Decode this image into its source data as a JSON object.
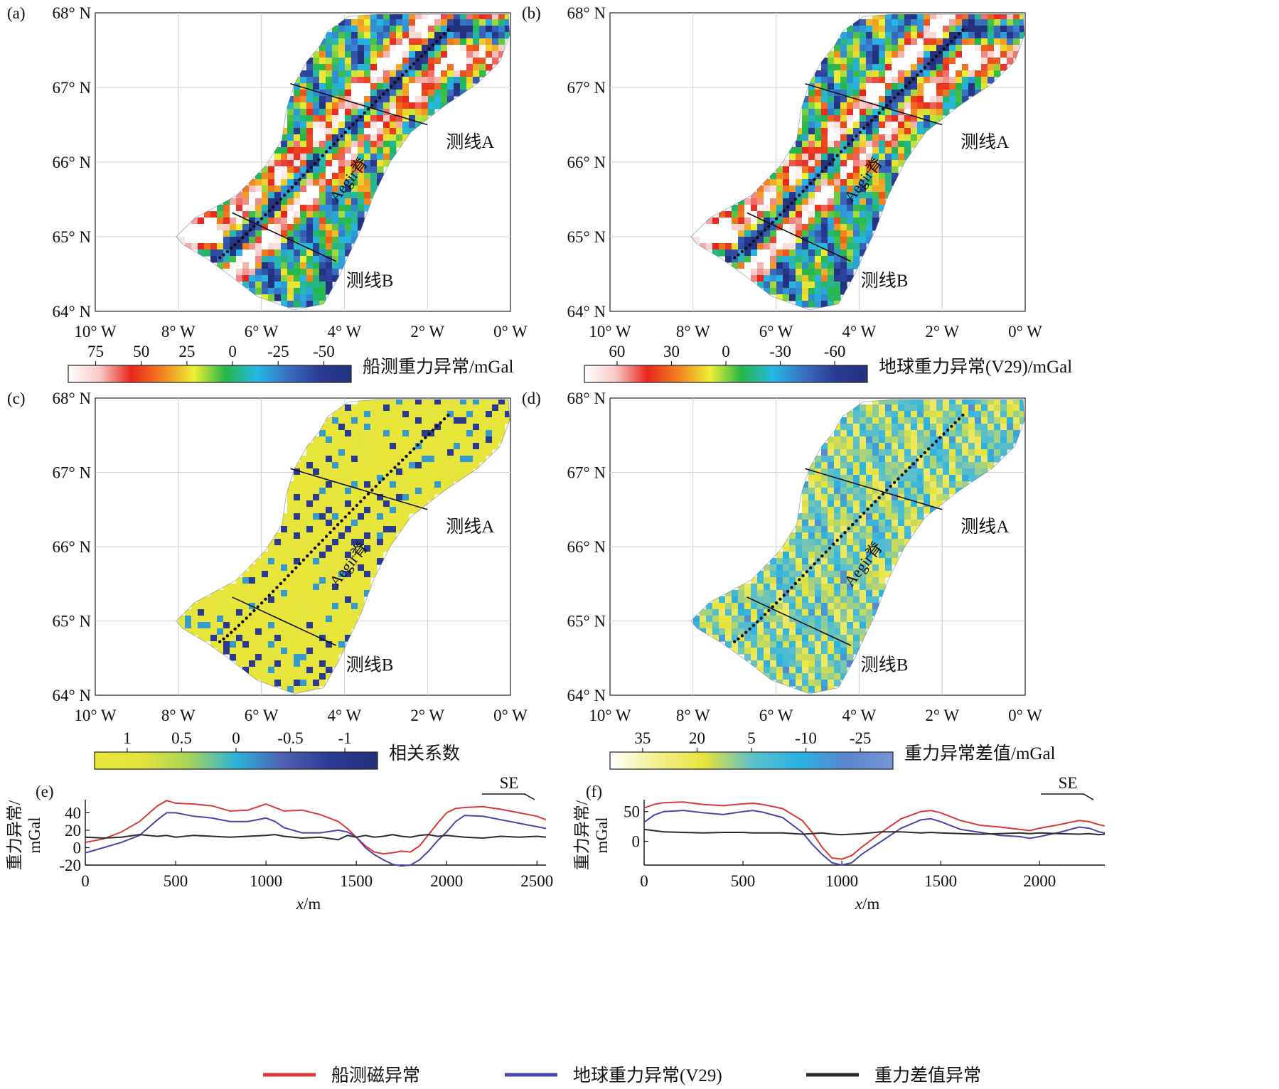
{
  "panels": [
    {
      "tag": "(a)",
      "colorbar_title": "船测重力异常/mGal",
      "ticks": [
        "75",
        "50",
        "25",
        "0",
        "-25",
        "-50"
      ],
      "stops": [
        "#ffffff",
        "#f7c9c6",
        "#e8241c",
        "#f2831f",
        "#eef034",
        "#25b649",
        "#27b7e6",
        "#3a6ec0",
        "#2a3a93",
        "#23317f"
      ],
      "field": "ship"
    },
    {
      "tag": "(b)",
      "colorbar_title": "地球重力异常(V29)/mGal",
      "ticks": [
        "60",
        "30",
        "0",
        "-30",
        "-60"
      ],
      "stops": [
        "#ffffff",
        "#f7c9c6",
        "#e8241c",
        "#f2831f",
        "#eef034",
        "#25b649",
        "#27b7e6",
        "#3a6ec0",
        "#2a3a93",
        "#23317f"
      ],
      "field": "v29"
    },
    {
      "tag": "(c)",
      "colorbar_title": "相关系数",
      "ticks": [
        "1",
        "0.5",
        "0",
        "-0.5",
        "-1"
      ],
      "stops": [
        "#e9e63a",
        "#e3e43d",
        "#a8d35a",
        "#2bb3d9",
        "#4f5fb2",
        "#2b3b94",
        "#242f7a"
      ],
      "field": "corr"
    },
    {
      "tag": "(d)",
      "colorbar_title": "重力异常差值/mGal",
      "ticks": [
        "35",
        "20",
        "5",
        "-10",
        "-25"
      ],
      "stops": [
        "#ffffff",
        "#f1ef8e",
        "#e8e33a",
        "#5fc0c9",
        "#29b3e2",
        "#5a86cf",
        "#7796d6"
      ],
      "field": "diff"
    }
  ],
  "map_common": {
    "lat_labels": [
      "68° N",
      "67° N",
      "66° N",
      "65° N",
      "64° N"
    ],
    "lon_labels": [
      "10° W",
      "8° W",
      "6° W",
      "4° W",
      "2° W",
      "0° W"
    ],
    "profile_a_label": "测线A",
    "profile_b_label": "测线B",
    "ridge_label": "Aegir脊"
  },
  "profiles_common": {
    "xlabel_italic": "x",
    "xlabel_unit": "/m",
    "ylabel": "重力异常/",
    "ylabel2": "mGal",
    "direction": "SE"
  },
  "chart_data": [
    {
      "type": "line",
      "tag": "(e)",
      "xlim": [
        0,
        2550
      ],
      "ylim": [
        -20,
        55
      ],
      "xticks": [
        0,
        500,
        1000,
        1500,
        2000,
        2500
      ],
      "yticks": [
        -20,
        0,
        20,
        40
      ],
      "series": [
        {
          "name": "船测磁异常",
          "color": "#d63a36",
          "x": [
            0,
            100,
            200,
            300,
            400,
            450,
            500,
            600,
            700,
            800,
            900,
            1000,
            1050,
            1100,
            1200,
            1300,
            1400,
            1450,
            1500,
            1550,
            1600,
            1650,
            1700,
            1750,
            1800,
            1850,
            1900,
            1950,
            2000,
            2050,
            2100,
            2200,
            2300,
            2400,
            2500,
            2550
          ],
          "y": [
            6,
            10,
            18,
            30,
            48,
            54,
            51,
            50,
            48,
            42,
            43,
            50,
            46,
            42,
            43,
            38,
            30,
            22,
            12,
            2,
            -5,
            -7,
            -6,
            -4,
            -5,
            2,
            15,
            28,
            40,
            45,
            46,
            47,
            44,
            40,
            36,
            32
          ]
        },
        {
          "name": "地球重力异常(V29)",
          "color": "#4a43a8",
          "x": [
            0,
            100,
            200,
            300,
            400,
            450,
            500,
            600,
            700,
            800,
            900,
            1000,
            1050,
            1100,
            1200,
            1300,
            1400,
            1450,
            1500,
            1550,
            1600,
            1650,
            1700,
            1750,
            1800,
            1850,
            1900,
            1950,
            2000,
            2050,
            2100,
            2200,
            2300,
            2400,
            2500,
            2550
          ],
          "y": [
            -6,
            0,
            6,
            14,
            32,
            40,
            40,
            36,
            34,
            30,
            30,
            34,
            30,
            23,
            17,
            17,
            20,
            18,
            12,
            0,
            -8,
            -14,
            -19,
            -21,
            -20,
            -14,
            -4,
            8,
            18,
            30,
            37,
            36,
            32,
            28,
            24,
            22
          ]
        },
        {
          "name": "重力差值异常",
          "color": "#2b2b2b",
          "x": [
            0,
            100,
            200,
            300,
            400,
            450,
            500,
            600,
            700,
            800,
            900,
            1000,
            1050,
            1100,
            1200,
            1300,
            1400,
            1450,
            1500,
            1550,
            1600,
            1650,
            1700,
            1750,
            1800,
            1850,
            1900,
            1950,
            2000,
            2050,
            2100,
            2200,
            2300,
            2400,
            2500,
            2550
          ],
          "y": [
            12,
            11,
            12,
            15,
            13,
            14,
            12,
            14,
            13,
            12,
            13,
            14,
            15,
            13,
            11,
            12,
            9,
            14,
            12,
            14,
            12,
            13,
            15,
            13,
            12,
            14,
            15,
            13,
            14,
            13,
            12,
            11,
            13,
            12,
            13,
            12
          ]
        }
      ]
    },
    {
      "type": "line",
      "tag": "(f)",
      "xlim": [
        0,
        2330
      ],
      "ylim": [
        -40,
        70
      ],
      "xticks": [
        0,
        500,
        1000,
        1500,
        2000
      ],
      "yticks": [
        0,
        50
      ],
      "series": [
        {
          "name": "船测磁异常",
          "color": "#d63a36",
          "x": [
            0,
            50,
            100,
            200,
            300,
            400,
            500,
            550,
            600,
            700,
            800,
            850,
            900,
            950,
            1000,
            1050,
            1100,
            1200,
            1300,
            1400,
            1450,
            1500,
            1600,
            1700,
            1800,
            1900,
            1950,
            2000,
            2100,
            2200,
            2250,
            2300,
            2330
          ],
          "y": [
            56,
            62,
            65,
            66,
            62,
            60,
            63,
            64,
            62,
            55,
            35,
            15,
            -10,
            -28,
            -30,
            -24,
            -10,
            15,
            38,
            50,
            52,
            48,
            35,
            27,
            24,
            20,
            18,
            22,
            28,
            35,
            33,
            28,
            26
          ]
        },
        {
          "name": "地球重力异常(V29)",
          "color": "#4a43a8",
          "x": [
            0,
            50,
            100,
            200,
            300,
            400,
            500,
            550,
            600,
            700,
            800,
            850,
            900,
            950,
            1000,
            1050,
            1100,
            1200,
            1300,
            1400,
            1450,
            1500,
            1600,
            1700,
            1800,
            1900,
            1950,
            2000,
            2100,
            2200,
            2250,
            2300,
            2330
          ],
          "y": [
            32,
            44,
            50,
            52,
            48,
            45,
            50,
            52,
            49,
            40,
            15,
            -5,
            -22,
            -36,
            -40,
            -36,
            -22,
            0,
            22,
            36,
            38,
            33,
            20,
            15,
            10,
            8,
            5,
            8,
            15,
            24,
            22,
            16,
            14
          ]
        },
        {
          "name": "重力差值异常",
          "color": "#2b2b2b",
          "x": [
            0,
            50,
            100,
            200,
            300,
            400,
            500,
            550,
            600,
            700,
            800,
            850,
            900,
            950,
            1000,
            1050,
            1100,
            1200,
            1300,
            1400,
            1450,
            1500,
            1600,
            1700,
            1800,
            1900,
            1950,
            2000,
            2100,
            2200,
            2250,
            2300,
            2330
          ],
          "y": [
            20,
            18,
            16,
            15,
            14,
            15,
            15,
            14,
            14,
            14,
            12,
            13,
            14,
            12,
            11,
            12,
            13,
            16,
            16,
            14,
            15,
            14,
            13,
            12,
            13,
            14,
            13,
            14,
            13,
            12,
            13,
            11,
            12
          ]
        }
      ]
    }
  ],
  "legend": [
    {
      "label": "船测磁异常",
      "color": "#d63a36"
    },
    {
      "label": "地球重力异常(V29)",
      "color": "#4a43a8"
    },
    {
      "label": "重力差值异常",
      "color": "#2b2b2b"
    }
  ]
}
